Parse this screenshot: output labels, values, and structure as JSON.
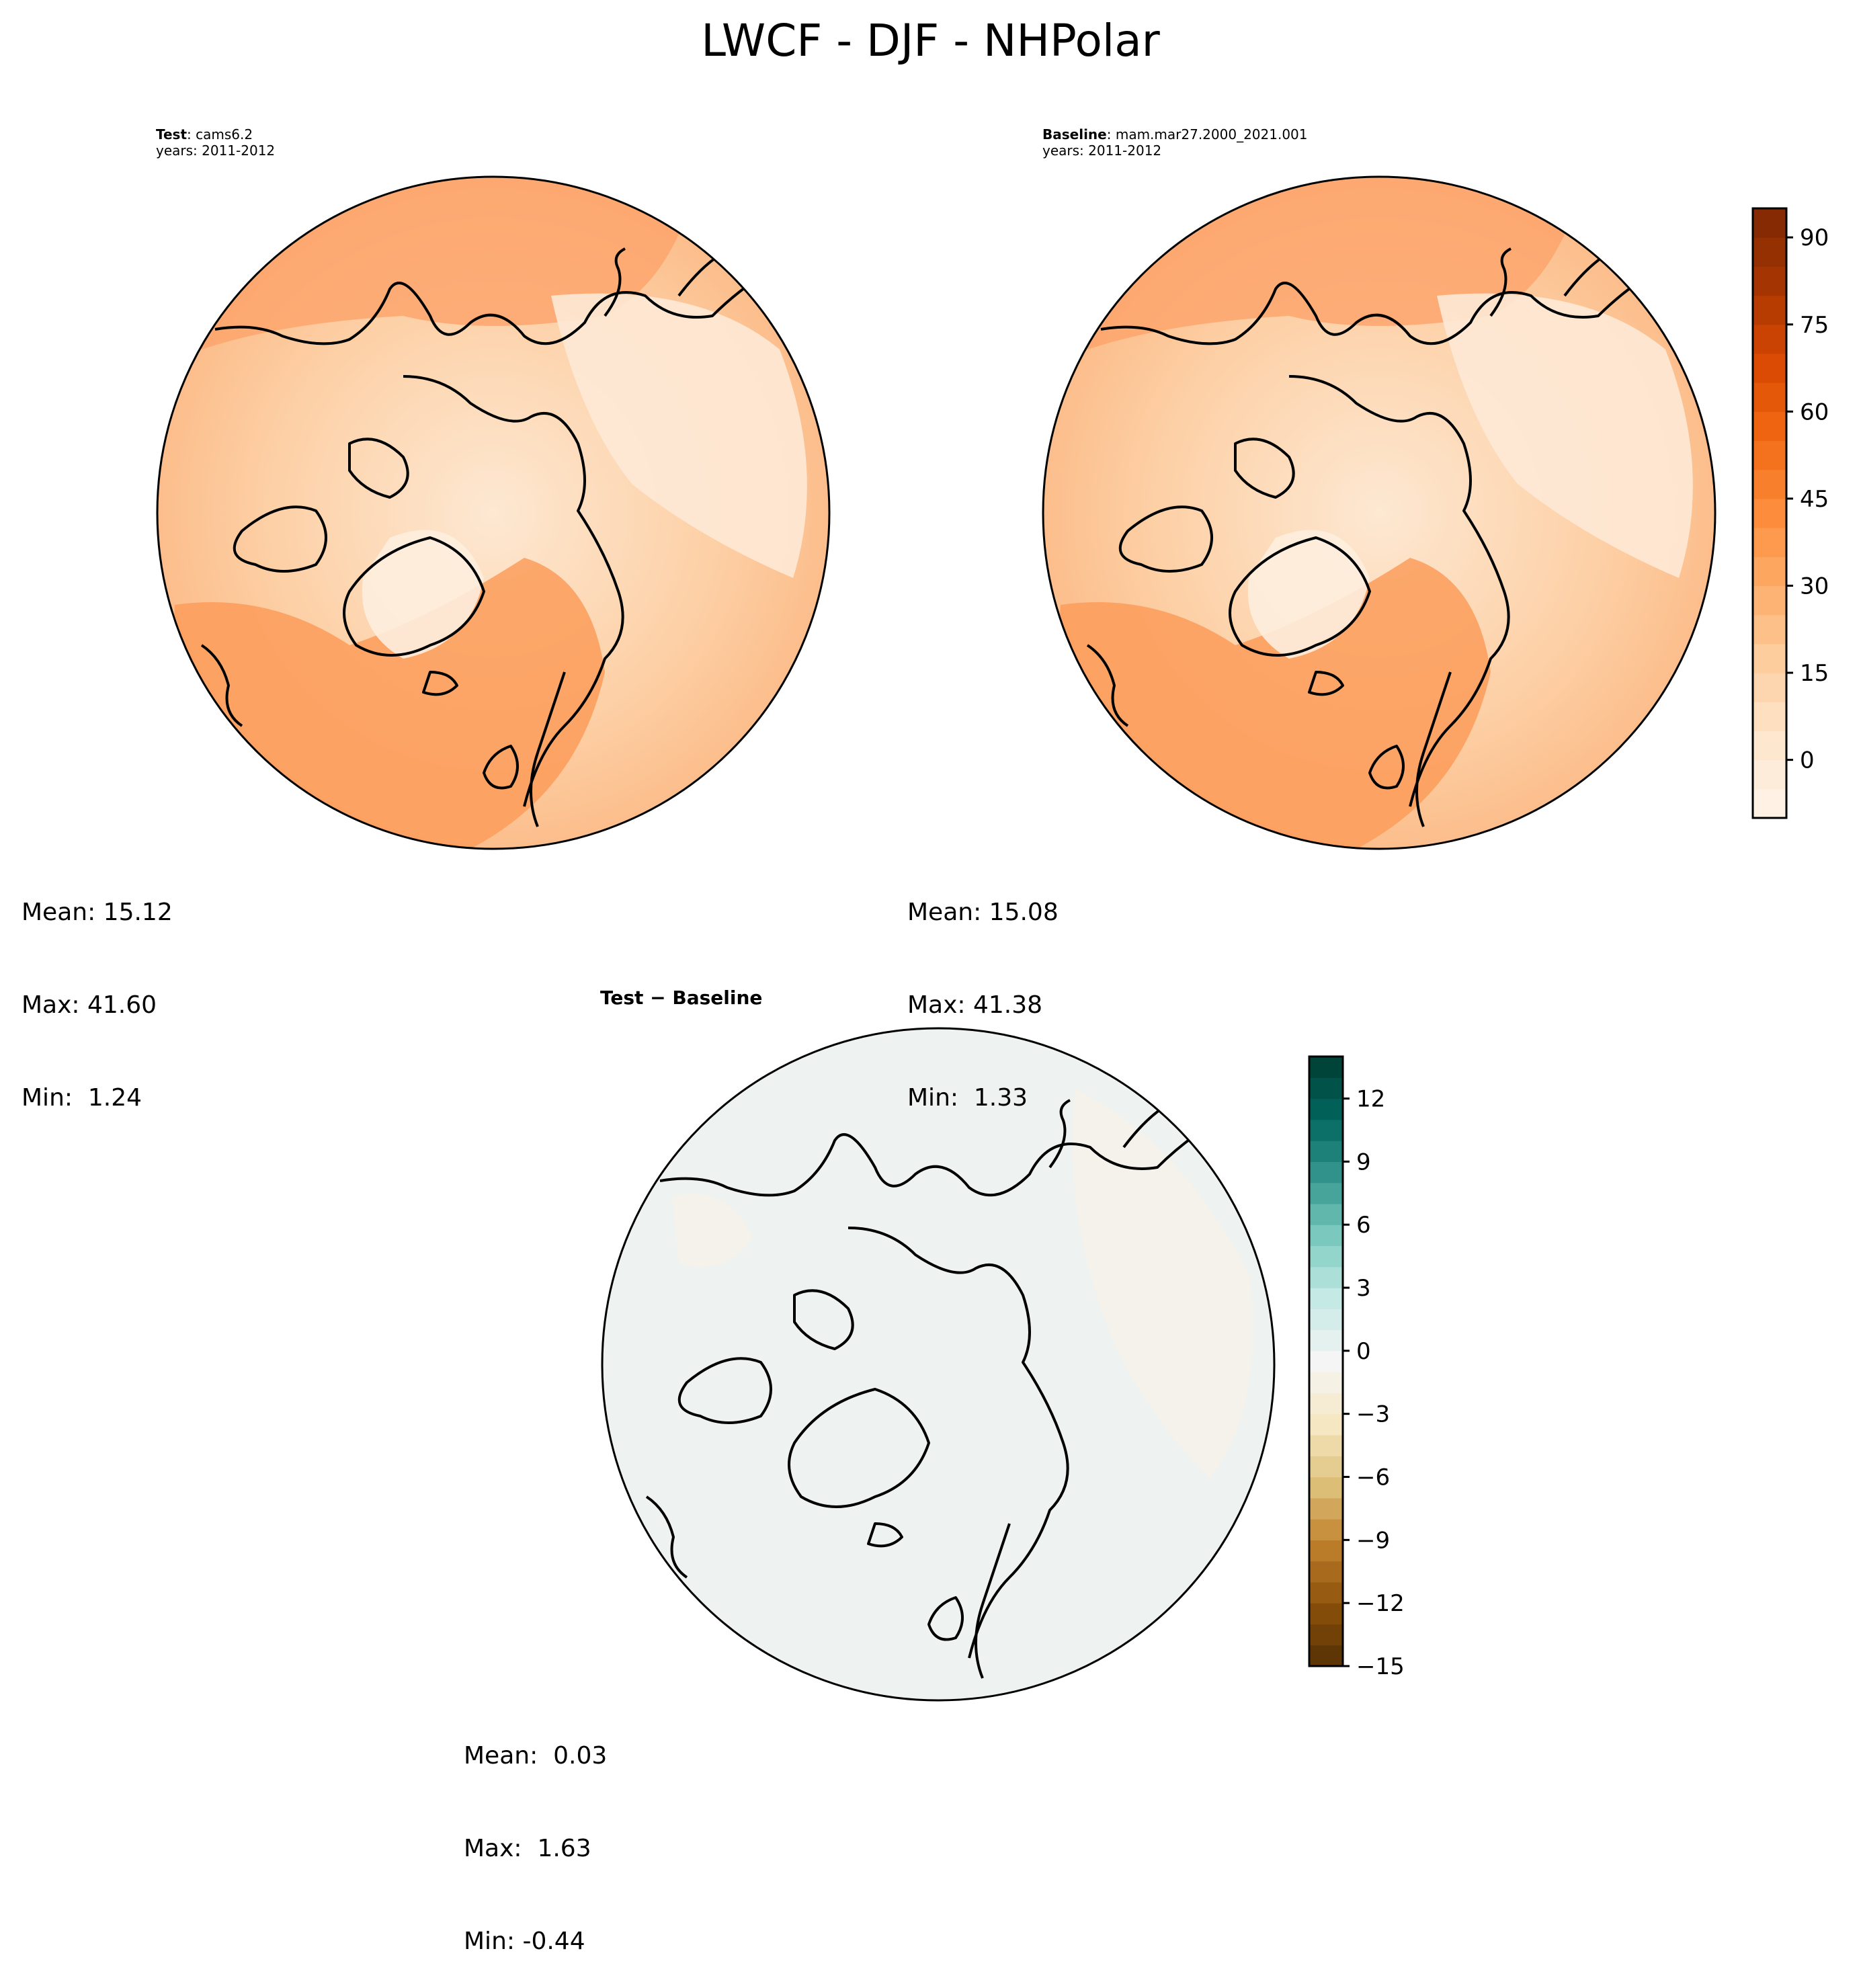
{
  "figure": {
    "title": "LWCF - DJF - NHPolar"
  },
  "panels": {
    "test": {
      "name_bold": "Test",
      "name_value": ": cams6.2",
      "years": "years: 2011-2012",
      "stats": {
        "mean": "Mean: 15.12",
        "max": "Max: 41.60",
        "min": "Min:  1.24"
      }
    },
    "baseline": {
      "name_bold": "Baseline",
      "name_value": ": mam.mar27.2000_2021.001",
      "years": "years: 2011-2012",
      "stats": {
        "mean": "Mean: 15.08",
        "max": "Max: 41.38",
        "min": "Min:  1.33"
      }
    },
    "difference": {
      "title": "Test − Baseline",
      "stats": {
        "mean": "Mean:  0.03",
        "max": "Max:  1.63",
        "min": "Min: -0.44"
      }
    }
  },
  "chart_data": [
    {
      "type": "heatmap",
      "projection": "north-polar-stereographic",
      "panel": "test",
      "colorbar": {
        "colormap": "Oranges",
        "range": [
          -10,
          95
        ],
        "ticks": [
          0,
          15,
          30,
          45,
          60,
          75,
          90
        ],
        "tick_labels": [
          "0",
          "15",
          "30",
          "45",
          "60",
          "75",
          "90"
        ],
        "colors": [
          "#fff5eb",
          "#fee6ce",
          "#fdd0a2",
          "#fdae6b",
          "#fd8d3c",
          "#f16913",
          "#d94801",
          "#a63603",
          "#7f2704"
        ]
      }
    },
    {
      "type": "heatmap",
      "projection": "north-polar-stereographic",
      "panel": "baseline"
    },
    {
      "type": "heatmap",
      "projection": "north-polar-stereographic",
      "panel": "difference",
      "colorbar": {
        "colormap": "BrBG",
        "range": [
          -15,
          14
        ],
        "ticks": [
          -15,
          -12,
          -9,
          -6,
          -3,
          0,
          3,
          6,
          9,
          12
        ],
        "tick_labels": [
          "−15",
          "−12",
          "−9",
          "−6",
          "−3",
          "0",
          "3",
          "6",
          "9",
          "12"
        ],
        "colors": [
          "#543005",
          "#8c510a",
          "#bf812d",
          "#dfc27d",
          "#f6e8c3",
          "#f5f5f5",
          "#c7eae5",
          "#80cdc1",
          "#35978f",
          "#01665e",
          "#003c30"
        ]
      }
    }
  ]
}
